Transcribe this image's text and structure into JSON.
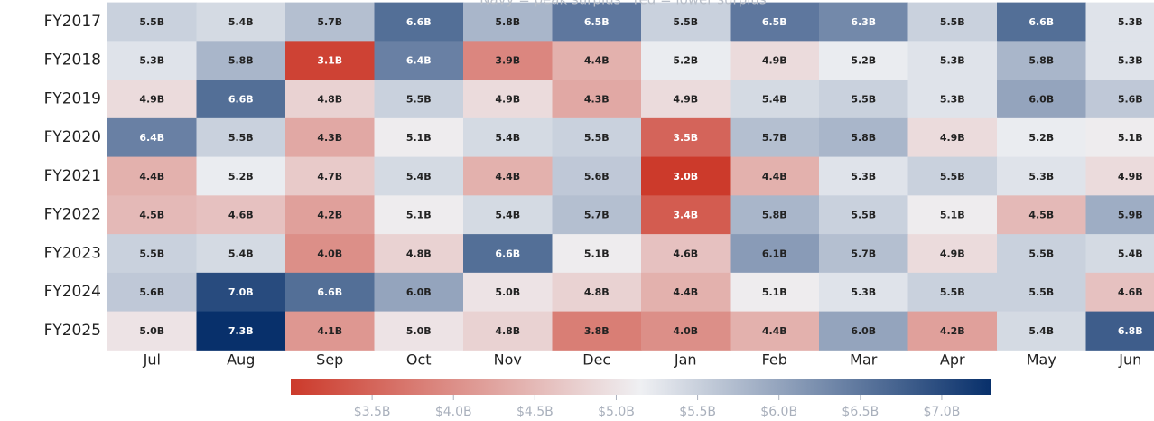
{
  "chart_data": {
    "type": "heatmap",
    "subtitle": "Navy = peak surplus · red = lower surplus",
    "rows": [
      "FY2017",
      "FY2018",
      "FY2019",
      "FY2020",
      "FY2021",
      "FY2022",
      "FY2023",
      "FY2024",
      "FY2025"
    ],
    "columns": [
      "Jul",
      "Aug",
      "Sep",
      "Oct",
      "Nov",
      "Dec",
      "Jan",
      "Feb",
      "Mar",
      "Apr",
      "May",
      "Jun"
    ],
    "values": [
      [
        5.5,
        5.4,
        5.7,
        6.6,
        5.8,
        6.5,
        5.5,
        6.5,
        6.3,
        5.5,
        6.6,
        5.3
      ],
      [
        5.3,
        5.8,
        3.1,
        6.4,
        3.9,
        4.4,
        5.2,
        4.9,
        5.2,
        5.3,
        5.8,
        5.3
      ],
      [
        4.9,
        6.6,
        4.8,
        5.5,
        4.9,
        4.3,
        4.9,
        5.4,
        5.5,
        5.3,
        6.0,
        5.6
      ],
      [
        6.4,
        5.5,
        4.3,
        5.1,
        5.4,
        5.5,
        3.5,
        5.7,
        5.8,
        4.9,
        5.2,
        5.1
      ],
      [
        4.4,
        5.2,
        4.7,
        5.4,
        4.4,
        5.6,
        3.0,
        4.4,
        5.3,
        5.5,
        5.3,
        4.9
      ],
      [
        4.5,
        4.6,
        4.2,
        5.1,
        5.4,
        5.7,
        3.4,
        5.8,
        5.5,
        5.1,
        4.5,
        5.9
      ],
      [
        5.5,
        5.4,
        4.0,
        4.8,
        6.6,
        5.1,
        4.6,
        6.1,
        5.7,
        4.9,
        5.5,
        5.4
      ],
      [
        5.6,
        7.0,
        6.6,
        6.0,
        5.0,
        4.8,
        4.4,
        5.1,
        5.3,
        5.5,
        5.5,
        4.6
      ],
      [
        5.0,
        7.3,
        4.1,
        5.0,
        4.8,
        3.8,
        4.0,
        4.4,
        6.0,
        4.2,
        5.4,
        6.8
      ]
    ],
    "value_labels": [
      [
        "5.5B",
        "5.4B",
        "5.7B",
        "6.6B",
        "5.8B",
        "6.5B",
        "5.5B",
        "6.5B",
        "6.3B",
        "5.5B",
        "6.6B",
        "5.3B"
      ],
      [
        "5.3B",
        "5.8B",
        "3.1B",
        "6.4B",
        "3.9B",
        "4.4B",
        "5.2B",
        "4.9B",
        "5.2B",
        "5.3B",
        "5.8B",
        "5.3B"
      ],
      [
        "4.9B",
        "6.6B",
        "4.8B",
        "5.5B",
        "4.9B",
        "4.3B",
        "4.9B",
        "5.4B",
        "5.5B",
        "5.3B",
        "6.0B",
        "5.6B"
      ],
      [
        "6.4B",
        "5.5B",
        "4.3B",
        "5.1B",
        "5.4B",
        "5.5B",
        "3.5B",
        "5.7B",
        "5.8B",
        "4.9B",
        "5.2B",
        "5.1B"
      ],
      [
        "4.4B",
        "5.2B",
        "4.7B",
        "5.4B",
        "4.4B",
        "5.6B",
        "3.0B",
        "4.4B",
        "5.3B",
        "5.5B",
        "5.3B",
        "4.9B"
      ],
      [
        "4.5B",
        "4.6B",
        "4.2B",
        "5.1B",
        "5.4B",
        "5.7B",
        "3.4B",
        "5.8B",
        "5.5B",
        "5.1B",
        "4.5B",
        "5.9B"
      ],
      [
        "5.5B",
        "5.4B",
        "4.0B",
        "4.8B",
        "6.6B",
        "5.1B",
        "4.6B",
        "6.1B",
        "5.7B",
        "4.9B",
        "5.5B",
        "5.4B"
      ],
      [
        "5.6B",
        "7.0B",
        "6.6B",
        "6.0B",
        "5.0B",
        "4.8B",
        "4.4B",
        "5.1B",
        "5.3B",
        "5.5B",
        "5.5B",
        "4.6B"
      ],
      [
        "5.0B",
        "7.3B",
        "4.1B",
        "5.0B",
        "4.8B",
        "3.8B",
        "4.0B",
        "4.4B",
        "6.0B",
        "4.2B",
        "5.4B",
        "6.8B"
      ]
    ],
    "clim": [
      3.0,
      7.3
    ],
    "colormap": [
      "#cc3a2b",
      "#eff0f3",
      "#08306b"
    ],
    "cticks": [
      {
        "value": 3.5,
        "label": "$3.5B"
      },
      {
        "value": 4.0,
        "label": "$4.0B"
      },
      {
        "value": 4.5,
        "label": "$4.5B"
      },
      {
        "value": 5.0,
        "label": "$5.0B"
      },
      {
        "value": 5.5,
        "label": "$5.5B"
      },
      {
        "value": 6.0,
        "label": "$6.0B"
      },
      {
        "value": 6.5,
        "label": "$6.5B"
      },
      {
        "value": 7.0,
        "label": "$7.0B"
      }
    ]
  }
}
